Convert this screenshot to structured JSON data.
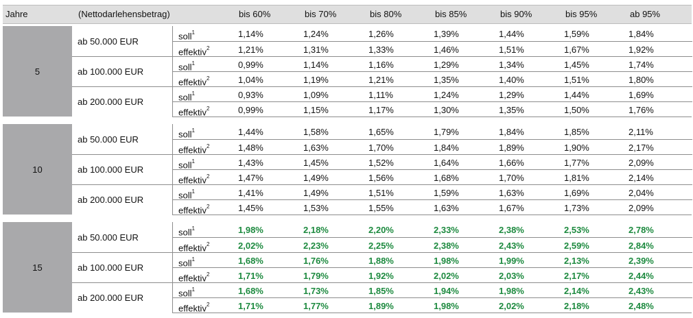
{
  "header": [
    "Jahre",
    "(Nettodarlehensbetrag)",
    "bis 60%",
    "bis 70%",
    "bis 80%",
    "bis 85%",
    "bis 90%",
    "bis 95%",
    "ab 95%"
  ],
  "highlight_color": "#1d8a3f",
  "row_types": [
    {
      "label": "soll",
      "note": "1"
    },
    {
      "label": "effektiv",
      "note": "2"
    }
  ],
  "blocks": [
    {
      "years": "5",
      "highlight": false,
      "groups": [
        {
          "amount": "ab 50.000 EUR",
          "soll": [
            "1,14%",
            "1,24%",
            "1,26%",
            "1,39%",
            "1,44%",
            "1,59%",
            "1,84%"
          ],
          "effektiv": [
            "1,21%",
            "1,31%",
            "1,33%",
            "1,46%",
            "1,51%",
            "1,67%",
            "1,92%"
          ]
        },
        {
          "amount": "ab 100.000 EUR",
          "soll": [
            "0,99%",
            "1,14%",
            "1,16%",
            "1,29%",
            "1,34%",
            "1,45%",
            "1,74%"
          ],
          "effektiv": [
            "1,04%",
            "1,19%",
            "1,21%",
            "1,35%",
            "1,40%",
            "1,51%",
            "1,80%"
          ]
        },
        {
          "amount": "ab 200.000 EUR",
          "soll": [
            "0,93%",
            "1,09%",
            "1,11%",
            "1,24%",
            "1,29%",
            "1,44%",
            "1,69%"
          ],
          "effektiv": [
            "0,99%",
            "1,15%",
            "1,17%",
            "1,30%",
            "1,35%",
            "1,50%",
            "1,76%"
          ]
        }
      ]
    },
    {
      "years": "10",
      "highlight": false,
      "groups": [
        {
          "amount": "ab 50.000 EUR",
          "soll": [
            "1,44%",
            "1,58%",
            "1,65%",
            "1,79%",
            "1,84%",
            "1,85%",
            "2,11%"
          ],
          "effektiv": [
            "1,48%",
            "1,63%",
            "1,70%",
            "1,84%",
            "1,89%",
            "1,90%",
            "2,17%"
          ]
        },
        {
          "amount": "ab 100.000 EUR",
          "soll": [
            "1,43%",
            "1,45%",
            "1,52%",
            "1,64%",
            "1,66%",
            "1,77%",
            "2,09%"
          ],
          "effektiv": [
            "1,47%",
            "1,49%",
            "1,56%",
            "1,68%",
            "1,70%",
            "1,81%",
            "2,14%"
          ]
        },
        {
          "amount": "ab 200.000 EUR",
          "soll": [
            "1,41%",
            "1,49%",
            "1,51%",
            "1,59%",
            "1,63%",
            "1,69%",
            "2,04%"
          ],
          "effektiv": [
            "1,45%",
            "1,53%",
            "1,55%",
            "1,63%",
            "1,67%",
            "1,73%",
            "2,09%"
          ]
        }
      ]
    },
    {
      "years": "15",
      "highlight": true,
      "groups": [
        {
          "amount": "ab 50.000 EUR",
          "soll": [
            "1,98%",
            "2,18%",
            "2,20%",
            "2,33%",
            "2,38%",
            "2,53%",
            "2,78%"
          ],
          "effektiv": [
            "2,02%",
            "2,23%",
            "2,25%",
            "2,38%",
            "2,43%",
            "2,59%",
            "2,84%"
          ]
        },
        {
          "amount": "ab 100.000 EUR",
          "soll": [
            "1,68%",
            "1,76%",
            "1,88%",
            "1,98%",
            "1,99%",
            "2,13%",
            "2,39%"
          ],
          "effektiv": [
            "1,71%",
            "1,79%",
            "1,92%",
            "2,02%",
            "2,03%",
            "2,17%",
            "2,44%"
          ]
        },
        {
          "amount": "ab 200.000 EUR",
          "soll": [
            "1,68%",
            "1,73%",
            "1,85%",
            "1,94%",
            "1,98%",
            "2,14%",
            "2,43%"
          ],
          "effektiv": [
            "1,71%",
            "1,77%",
            "1,89%",
            "1,98%",
            "2,02%",
            "2,18%",
            "2,48%"
          ]
        }
      ]
    }
  ]
}
